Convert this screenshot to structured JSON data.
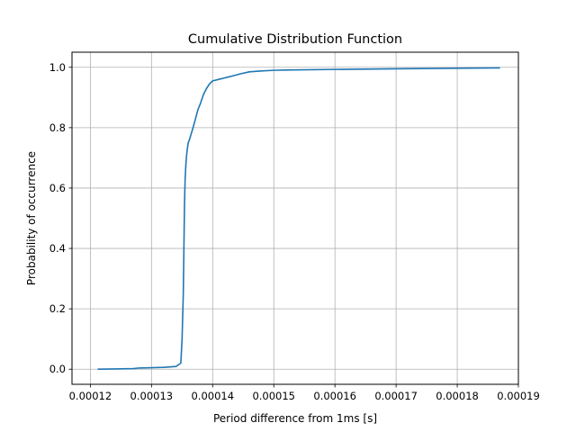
{
  "chart_data": {
    "type": "line",
    "title": "Cumulative Distribution Function",
    "xlabel": "Period difference from 1ms [s]",
    "ylabel": "Probability of occurrence",
    "xlim": [
      0.000117,
      0.00019
    ],
    "ylim": [
      -0.05,
      1.05
    ],
    "xticks": [
      0.00012,
      0.00013,
      0.00014,
      0.00015,
      0.00016,
      0.00017,
      0.00018,
      0.00019
    ],
    "xtick_labels": [
      "0.00012",
      "0.00013",
      "0.00014",
      "0.00015",
      "0.00016",
      "0.00017",
      "0.00018",
      "0.00019"
    ],
    "yticks": [
      0.0,
      0.2,
      0.4,
      0.6,
      0.8,
      1.0
    ],
    "ytick_labels": [
      "0.0",
      "0.2",
      "0.4",
      "0.6",
      "0.8",
      "1.0"
    ],
    "grid": true,
    "legend": "none",
    "line_color": "#1f77b4",
    "series": [
      {
        "x": [
          0.0001212,
          0.000124,
          0.000127,
          0.000128,
          0.00013,
          0.000132,
          0.000134,
          0.0001348,
          0.000135,
          0.0001352,
          0.0001353,
          0.0001354,
          0.0001355,
          0.0001356,
          0.0001357,
          0.0001358,
          0.000136,
          0.0001362,
          0.0001365,
          0.0001368,
          0.0001372,
          0.0001376,
          0.000138,
          0.0001385,
          0.000139,
          0.0001395,
          0.00014,
          0.000141,
          0.000142,
          0.000143,
          0.0001445,
          0.000146,
          0.000148,
          0.00015,
          0.000152,
          0.00016,
          0.00017,
          0.00018,
          0.000187
        ],
        "y": [
          0.0,
          0.001,
          0.002,
          0.004,
          0.005,
          0.006,
          0.009,
          0.02,
          0.1,
          0.25,
          0.4,
          0.55,
          0.63,
          0.67,
          0.7,
          0.72,
          0.75,
          0.76,
          0.78,
          0.8,
          0.83,
          0.86,
          0.88,
          0.91,
          0.93,
          0.945,
          0.955,
          0.96,
          0.965,
          0.97,
          0.978,
          0.985,
          0.988,
          0.99,
          0.991,
          0.993,
          0.995,
          0.997,
          0.998
        ]
      }
    ]
  }
}
